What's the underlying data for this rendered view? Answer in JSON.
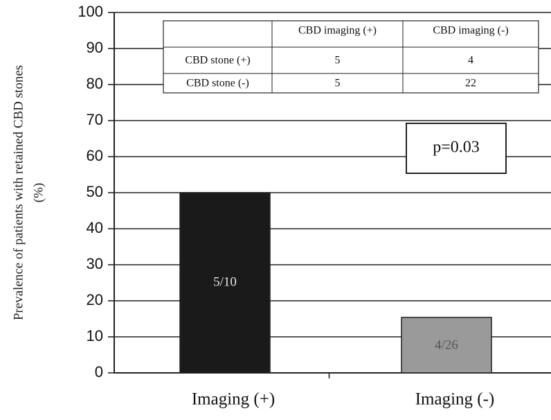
{
  "chart_data": {
    "type": "bar",
    "categories": [
      "Imaging (+)",
      "Imaging (-)"
    ],
    "values": [
      50,
      15.4
    ],
    "bar_labels": [
      "5/10",
      "4/26"
    ],
    "colors": [
      "#1a1a1a",
      "#9a9a9a"
    ],
    "bar_label_colors": [
      "#e6e6e6",
      "#555555"
    ],
    "title": "",
    "xlabel": "",
    "ylabel_lines": [
      "Prevalence of patients with retained CBD stones",
      "(%)"
    ],
    "ylim": [
      0,
      100
    ],
    "yticks": [
      0,
      10,
      20,
      30,
      40,
      50,
      60,
      70,
      80,
      90,
      100
    ],
    "grid": true,
    "annotation": "p=0.03",
    "table": {
      "columns": [
        "",
        "CBD imaging (+)",
        "CBD imaging (-)"
      ],
      "rows": [
        [
          "CBD stone (+)",
          "5",
          "4"
        ],
        [
          "CBD stone (-)",
          "5",
          "22"
        ]
      ]
    }
  }
}
